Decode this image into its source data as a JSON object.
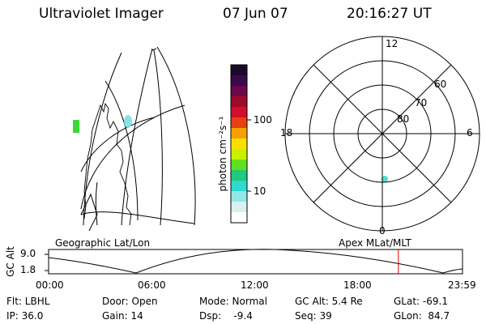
{
  "header": {
    "instrument": "Ultraviolet Imager",
    "date": "07 Jun 07",
    "time": "20:16:27 UT"
  },
  "colorbar": {
    "label": "photon cm⁻²s⁻¹",
    "ticks": [
      "100",
      "10"
    ],
    "colors": [
      "#1a0a2a",
      "#3a0a4a",
      "#6a0a4a",
      "#a00a2a",
      "#d0102a",
      "#e84010",
      "#f8a000",
      "#f8e000",
      "#c8f000",
      "#60e020",
      "#20c880",
      "#30d8d0",
      "#90e8e8",
      "#d8f0f0",
      "#ffffff"
    ]
  },
  "polar": {
    "mlt_labels": {
      "top": "12",
      "left": "18",
      "right": "6",
      "bottom": "0"
    },
    "lat_labels": [
      "60",
      "70",
      "80"
    ]
  },
  "captions": {
    "geographic": "Geographic Lat/Lon",
    "apex": "Apex MLat/MLT"
  },
  "timeline": {
    "ylabel": "GC Alt",
    "yticks": [
      "9.0",
      "1.8"
    ],
    "xticks": [
      "00:00",
      "06:00",
      "12:00",
      "18:00",
      "23:59"
    ],
    "marker_color": "#e00000",
    "marker_time_fraction": 0.845
  },
  "footer": {
    "filter": "Flt: LBHL",
    "ip": "IP: 36.0",
    "door": "Door: Open",
    "gain": "Gain: 14",
    "mode": "Mode: Normal",
    "dsp": "Dsp:    -9.4",
    "gc_alt": "GC Alt: 5.4 Re",
    "seq": "Seq: 39",
    "glat": "GLat: -69.1",
    "glon": "GLon:  84.7"
  }
}
